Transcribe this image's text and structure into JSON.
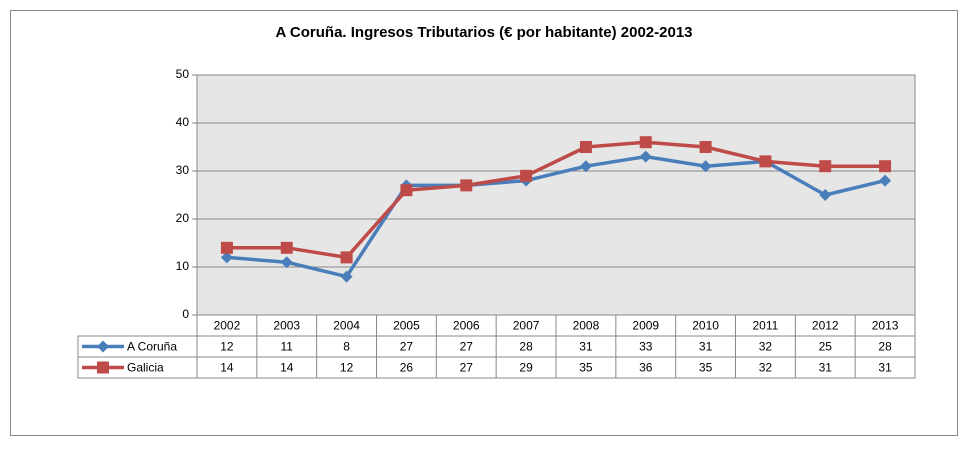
{
  "chart_data": {
    "type": "line",
    "title": "A Coruña. Ingresos Tributarios (€ por habitante) 2002-2013",
    "categories": [
      "2002",
      "2003",
      "2004",
      "2005",
      "2006",
      "2007",
      "2008",
      "2009",
      "2010",
      "2011",
      "2012",
      "2013"
    ],
    "series": [
      {
        "name": "A Coruña",
        "color": "#4a7ebb",
        "marker": "diamond",
        "values": [
          12,
          11,
          8,
          27,
          27,
          28,
          31,
          33,
          31,
          32,
          25,
          28
        ]
      },
      {
        "name": "Galicia",
        "color": "#be4b48",
        "marker": "square",
        "values": [
          14,
          14,
          12,
          26,
          27,
          29,
          35,
          36,
          35,
          32,
          31,
          31
        ]
      }
    ],
    "ylim": [
      0,
      50
    ],
    "yticks": [
      0,
      10,
      20,
      30,
      40,
      50
    ],
    "grid": true,
    "data_table": true
  }
}
